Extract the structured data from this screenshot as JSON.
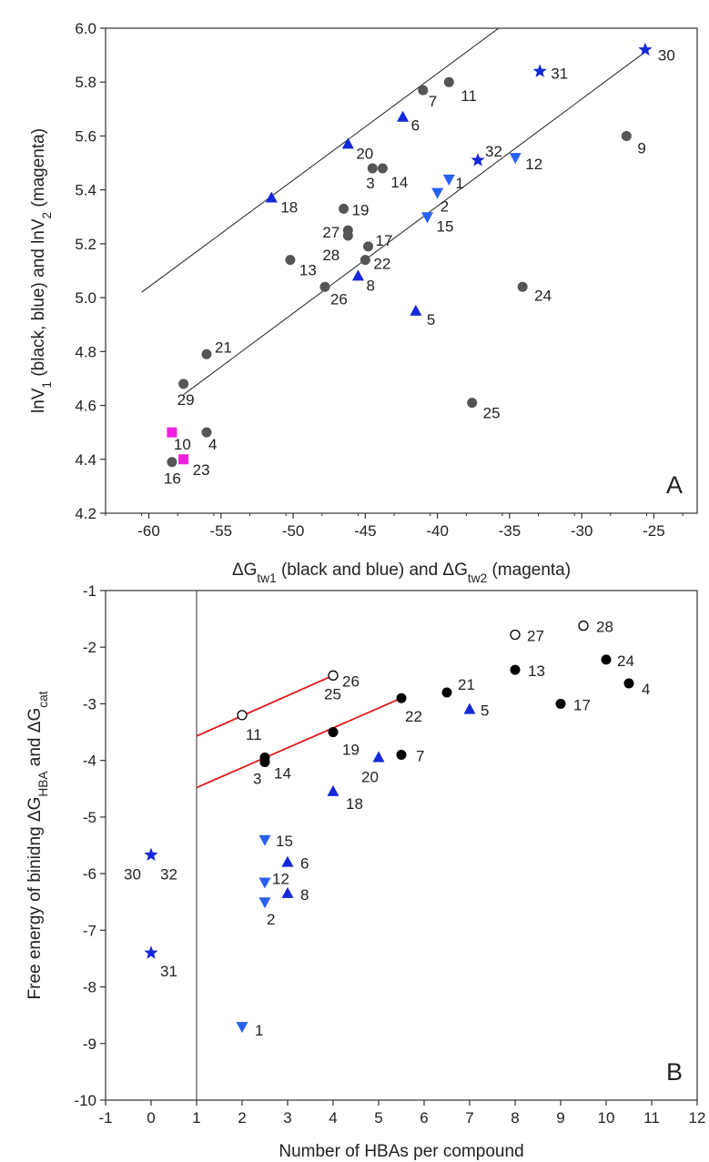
{
  "chart_data": [
    {
      "type": "scatter",
      "panel_letter": "A",
      "xlabel": "ΔG_tw1 (black and blue) and ΔG_tw2 (magenta)",
      "ylabel": "lnV_1 (black, blue) and lnV_2 (magenta)",
      "xlim": [
        -63,
        -22
      ],
      "ylim": [
        4.2,
        6.0
      ],
      "xticks": [
        -60,
        -55,
        -50,
        -45,
        -40,
        -35,
        -30,
        -25
      ],
      "yticks": [
        4.2,
        4.4,
        4.6,
        4.8,
        5.0,
        5.2,
        5.4,
        5.6,
        5.8,
        6.0
      ],
      "ytick_labels": [
        "4.2",
        "4.4",
        "4.6",
        "4.8",
        "5.0",
        "5.2",
        "5.4",
        "5.6",
        "5.8",
        "6.0"
      ],
      "grid": false,
      "colors": {
        "gray_circle": "#555555",
        "blue_up": "#1428d8",
        "blue_down": "#2860f0",
        "blue_star": "#1428d8",
        "magenta_square": "#f020e0"
      },
      "lines": [
        {
          "x": [
            -60.5,
            -34.5
          ],
          "y": [
            5.02,
            6.05
          ]
        },
        {
          "x": [
            -57.6,
            -25.4
          ],
          "y": [
            4.64,
            5.92
          ]
        }
      ],
      "points": [
        {
          "label": "7",
          "x": -41.0,
          "y": 5.77,
          "marker": "circle",
          "color": "gray_circle",
          "lx": 6,
          "ly": 18
        },
        {
          "label": "11",
          "x": -39.2,
          "y": 5.8,
          "marker": "circle",
          "color": "gray_circle",
          "lx": 13,
          "ly": 21
        },
        {
          "label": "3",
          "x": -44.5,
          "y": 5.48,
          "marker": "circle",
          "color": "gray_circle",
          "lx": -7,
          "ly": 22
        },
        {
          "label": "14",
          "x": -43.8,
          "y": 5.48,
          "marker": "circle",
          "color": "gray_circle",
          "lx": 9,
          "ly": 21
        },
        {
          "label": "19",
          "x": -46.5,
          "y": 5.33,
          "marker": "circle",
          "color": "gray_circle",
          "lx": 9,
          "ly": 7
        },
        {
          "label": "27",
          "x": -46.2,
          "y": 5.25,
          "marker": "circle",
          "color": "gray_circle",
          "lx": -28,
          "ly": 8
        },
        {
          "label": "28",
          "x": -46.2,
          "y": 5.23,
          "marker": "circle",
          "color": "gray_circle",
          "lx": -28,
          "ly": 27
        },
        {
          "label": "17",
          "x": -44.8,
          "y": 5.19,
          "marker": "circle",
          "color": "gray_circle",
          "lx": 8,
          "ly": -1
        },
        {
          "label": "22",
          "x": -45.0,
          "y": 5.14,
          "marker": "circle",
          "color": "gray_circle",
          "lx": 9,
          "ly": 10
        },
        {
          "label": "13",
          "x": -50.2,
          "y": 5.14,
          "marker": "circle",
          "color": "gray_circle",
          "lx": 10,
          "ly": 17
        },
        {
          "label": "26",
          "x": -47.8,
          "y": 5.04,
          "marker": "circle",
          "color": "gray_circle",
          "lx": 6,
          "ly": 19
        },
        {
          "label": "24",
          "x": -34.1,
          "y": 5.04,
          "marker": "circle",
          "color": "gray_circle",
          "lx": 13,
          "ly": 15
        },
        {
          "label": "9",
          "x": -26.9,
          "y": 5.6,
          "marker": "circle",
          "color": "gray_circle",
          "lx": 12,
          "ly": 19
        },
        {
          "label": "21",
          "x": -56.0,
          "y": 4.79,
          "marker": "circle",
          "color": "gray_circle",
          "lx": 9,
          "ly": -2
        },
        {
          "label": "29",
          "x": -57.6,
          "y": 4.68,
          "marker": "circle",
          "color": "gray_circle",
          "lx": -7,
          "ly": 23
        },
        {
          "label": "25",
          "x": -37.6,
          "y": 4.61,
          "marker": "circle",
          "color": "gray_circle",
          "lx": 12,
          "ly": 17
        },
        {
          "label": "4",
          "x": -56.0,
          "y": 4.5,
          "marker": "circle",
          "color": "gray_circle",
          "lx": 2,
          "ly": 19
        },
        {
          "label": "16",
          "x": -58.4,
          "y": 4.39,
          "marker": "circle",
          "color": "gray_circle",
          "lx": -9,
          "ly": 24
        },
        {
          "label": "6",
          "x": -42.4,
          "y": 5.67,
          "marker": "triangle-up",
          "color": "blue_up",
          "lx": 9,
          "ly": 15
        },
        {
          "label": "20",
          "x": -46.2,
          "y": 5.57,
          "marker": "triangle-up",
          "color": "blue_up",
          "lx": 9,
          "ly": 16
        },
        {
          "label": "18",
          "x": -51.5,
          "y": 5.37,
          "marker": "triangle-up",
          "color": "blue_up",
          "lx": 10,
          "ly": 16
        },
        {
          "label": "8",
          "x": -45.5,
          "y": 5.08,
          "marker": "triangle-up",
          "color": "blue_up",
          "lx": 9,
          "ly": 16
        },
        {
          "label": "5",
          "x": -41.5,
          "y": 4.95,
          "marker": "triangle-up",
          "color": "blue_up",
          "lx": 12,
          "ly": 15
        },
        {
          "label": "1",
          "x": -39.2,
          "y": 5.44,
          "marker": "triangle-down",
          "color": "blue_down",
          "lx": 7,
          "ly": 10
        },
        {
          "label": "2",
          "x": -40.0,
          "y": 5.39,
          "marker": "triangle-down",
          "color": "blue_down",
          "lx": 3,
          "ly": 21
        },
        {
          "label": "15",
          "x": -40.7,
          "y": 5.3,
          "marker": "triangle-down",
          "color": "blue_down",
          "lx": 10,
          "ly": 16
        },
        {
          "label": "12",
          "x": -34.6,
          "y": 5.52,
          "marker": "triangle-down",
          "color": "blue_down",
          "lx": 11,
          "ly": 13
        },
        {
          "label": "32",
          "x": -37.2,
          "y": 5.51,
          "marker": "star",
          "color": "blue_star",
          "lx": 8,
          "ly": -4
        },
        {
          "label": "31",
          "x": -32.9,
          "y": 5.84,
          "marker": "star",
          "color": "blue_star",
          "lx": 12,
          "ly": 8
        },
        {
          "label": "30",
          "x": -25.6,
          "y": 5.92,
          "marker": "star",
          "color": "blue_star",
          "lx": 14,
          "ly": 12
        },
        {
          "label": "10",
          "x": -58.4,
          "y": 4.5,
          "marker": "square",
          "color": "magenta_square",
          "lx": 2,
          "ly": 19
        },
        {
          "label": "23",
          "x": -57.6,
          "y": 4.4,
          "marker": "square",
          "color": "magenta_square",
          "lx": 10,
          "ly": 17
        }
      ]
    },
    {
      "type": "scatter",
      "panel_letter": "B",
      "xlabel": "Number of HBAs per compound",
      "ylabel": "Free energy of binidng ΔG_HBA and ΔG_cat",
      "xlim": [
        -1,
        12
      ],
      "ylim": [
        -10,
        -1
      ],
      "xticks": [
        -1,
        0,
        1,
        2,
        3,
        4,
        5,
        6,
        7,
        8,
        9,
        10,
        11,
        12
      ],
      "yticks": [
        -10,
        -9,
        -8,
        -7,
        -6,
        -5,
        -4,
        -3,
        -2,
        -1
      ],
      "grid": false,
      "vline_x": 1,
      "colors": {
        "black_circle": "#000000",
        "open_circle": "#000000",
        "blue_up": "#1428d8",
        "blue_down": "#2860f0",
        "blue_star": "#1428d8",
        "red_line": "#e01818"
      },
      "lines": [
        {
          "x": [
            1,
            4
          ],
          "y": [
            -3.57,
            -2.5
          ],
          "color": "red_line"
        },
        {
          "x": [
            1,
            5.5
          ],
          "y": [
            -4.48,
            -2.9
          ],
          "color": "red_line"
        }
      ],
      "points": [
        {
          "label": "11",
          "x": 2,
          "y": -3.2,
          "marker": "open-circle",
          "color": "open_circle",
          "lx": 4,
          "ly": 27
        },
        {
          "label": "25",
          "x": 4,
          "y": -2.5,
          "marker": "open-circle",
          "color": "open_circle",
          "lx": -10,
          "ly": 26
        },
        {
          "label": "26",
          "x": 4.0,
          "y": -2.5,
          "marker": "none",
          "color": "open_circle",
          "lx": 10,
          "ly": 12
        },
        {
          "label": "27",
          "x": 8,
          "y": -1.78,
          "marker": "open-circle",
          "color": "open_circle",
          "lx": 13,
          "ly": 7
        },
        {
          "label": "28",
          "x": 9.5,
          "y": -1.62,
          "marker": "open-circle",
          "color": "open_circle",
          "lx": 14,
          "ly": 7
        },
        {
          "label": "3",
          "x": 2.5,
          "y": -4.03,
          "marker": "circle",
          "color": "black_circle",
          "lx": -13,
          "ly": 24
        },
        {
          "label": "14",
          "x": 2.5,
          "y": -3.95,
          "marker": "circle",
          "color": "black_circle",
          "lx": 10,
          "ly": 23
        },
        {
          "label": "19",
          "x": 4,
          "y": -3.5,
          "marker": "circle",
          "color": "black_circle",
          "lx": 10,
          "ly": 25
        },
        {
          "label": "22",
          "x": 5.5,
          "y": -2.9,
          "marker": "circle",
          "color": "black_circle",
          "lx": 4,
          "ly": 26
        },
        {
          "label": "7",
          "x": 5.5,
          "y": -3.9,
          "marker": "circle",
          "color": "black_circle",
          "lx": 16,
          "ly": 7
        },
        {
          "label": "21",
          "x": 6.5,
          "y": -2.8,
          "marker": "circle",
          "color": "black_circle",
          "lx": 12,
          "ly": -3
        },
        {
          "label": "13",
          "x": 8,
          "y": -2.4,
          "marker": "circle",
          "color": "black_circle",
          "lx": 14,
          "ly": 7
        },
        {
          "label": "17",
          "x": 9,
          "y": -3.0,
          "marker": "circle",
          "color": "black_circle",
          "lx": 14,
          "ly": 7
        },
        {
          "label": "24",
          "x": 10,
          "y": -2.22,
          "marker": "circle",
          "color": "black_circle",
          "lx": 12,
          "ly": 7
        },
        {
          "label": "4",
          "x": 10.5,
          "y": -2.64,
          "marker": "circle",
          "color": "black_circle",
          "lx": 14,
          "ly": 12
        },
        {
          "label": "5",
          "x": 7,
          "y": -3.1,
          "marker": "triangle-up",
          "color": "blue_up",
          "lx": 12,
          "ly": 7
        },
        {
          "label": "20",
          "x": 5,
          "y": -3.95,
          "marker": "triangle-up",
          "color": "blue_up",
          "lx": -19,
          "ly": 27
        },
        {
          "label": "18",
          "x": 4,
          "y": -4.55,
          "marker": "triangle-up",
          "color": "blue_up",
          "lx": 14,
          "ly": 19
        },
        {
          "label": "6",
          "x": 3,
          "y": -5.8,
          "marker": "triangle-up",
          "color": "blue_up",
          "lx": 14,
          "ly": 7
        },
        {
          "label": "8",
          "x": 3,
          "y": -6.35,
          "marker": "triangle-up",
          "color": "blue_up",
          "lx": 14,
          "ly": 7
        },
        {
          "label": "15",
          "x": 2.5,
          "y": -5.4,
          "marker": "triangle-down",
          "color": "blue_down",
          "lx": 12,
          "ly": 7
        },
        {
          "label": "12",
          "x": 2.5,
          "y": -6.15,
          "marker": "triangle-down",
          "color": "blue_down",
          "lx": 8,
          "ly": 2
        },
        {
          "label": "2",
          "x": 2.5,
          "y": -6.5,
          "marker": "triangle-down",
          "color": "blue_down",
          "lx": 2,
          "ly": 25
        },
        {
          "label": "1",
          "x": 2,
          "y": -8.7,
          "marker": "triangle-down",
          "color": "blue_down",
          "lx": 14,
          "ly": 10
        },
        {
          "label": "30",
          "x": 0,
          "y": -5.67,
          "marker": "star",
          "color": "blue_star",
          "lx": -30,
          "ly": 27
        },
        {
          "label": "32",
          "x": 0,
          "y": -5.67,
          "marker": "none",
          "color": "blue_star",
          "lx": 10,
          "ly": 27
        },
        {
          "label": "31",
          "x": 0,
          "y": -7.4,
          "marker": "star",
          "color": "blue_star",
          "lx": 0,
          "ly": 26
        }
      ]
    }
  ]
}
